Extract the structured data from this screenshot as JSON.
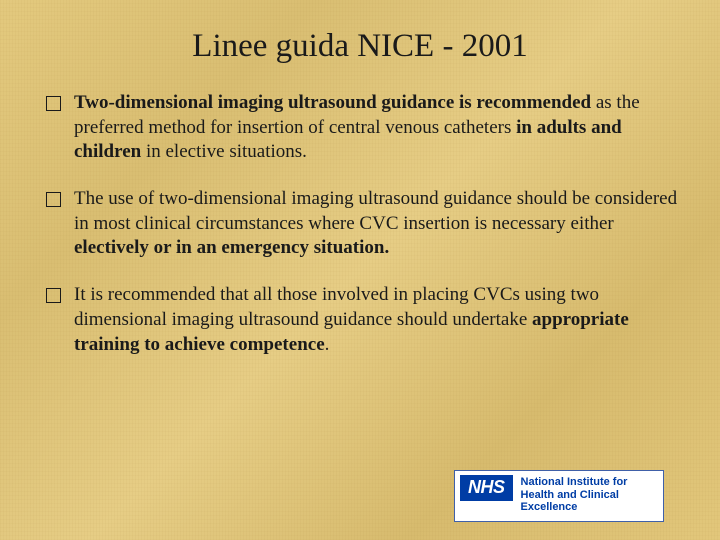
{
  "title": "Linee guida NICE - 2001",
  "bullets": [
    {
      "html": "<b>Two-dimensional imaging ultrasound guidance is recommended</b> as the preferred method for insertion of central venous catheters <b>in adults and children</b> in elective situations."
    },
    {
      "html": "The use of two-dimensional imaging ultrasound guidance should be considered in most clinical circumstances where CVC insertion is necessary either <b>electively or in an emergency situation.</b>"
    },
    {
      "html": "It is recommended that all those involved in placing CVCs using two dimensional imaging ultrasound guidance should undertake <b>appropriate training to achieve competence</b>."
    }
  ],
  "logo": {
    "badge": "NHS",
    "line1": "National Institute for",
    "line2": "Health and Clinical Excellence"
  },
  "colors": {
    "text": "#1a1a1a",
    "nhs_blue": "#003da5",
    "bg_base": "#e3c97e"
  },
  "typography": {
    "title_fontsize": 33,
    "body_fontsize": 19,
    "logo_text_fontsize": 11
  }
}
